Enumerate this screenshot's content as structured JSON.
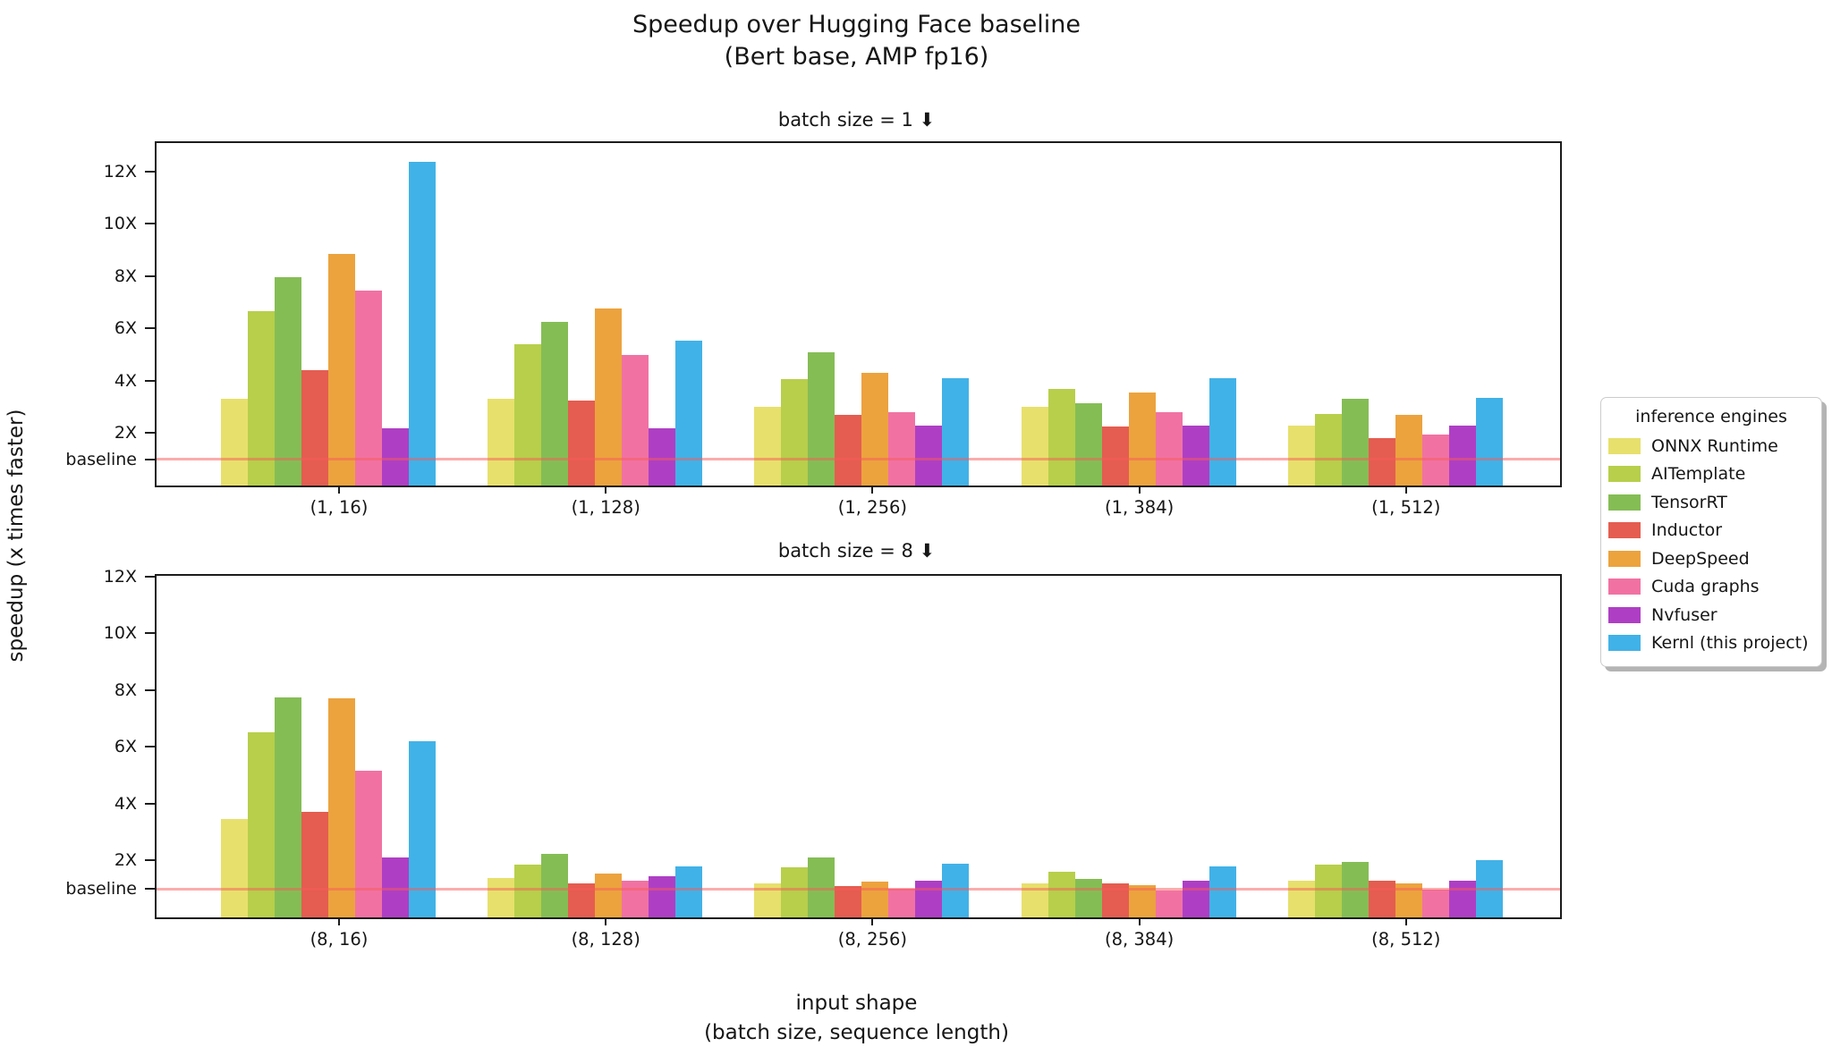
{
  "title": {
    "line1": "Speedup over Hugging Face baseline",
    "line2": "(Bert base, AMP fp16)"
  },
  "ylabel": "speedup (x times faster)",
  "xlabel": {
    "line1": "input shape",
    "line2": "(batch size, sequence length)"
  },
  "legend": {
    "title": "inference engines",
    "entries": [
      {
        "label": "ONNX Runtime",
        "color": "#e7e06c"
      },
      {
        "label": "AITemplate",
        "color": "#b7cf4b"
      },
      {
        "label": "TensorRT",
        "color": "#85bd55"
      },
      {
        "label": "Inductor",
        "color": "#e45d50"
      },
      {
        "label": "DeepSpeed",
        "color": "#eca33e"
      },
      {
        "label": "Cuda graphs",
        "color": "#f172a2"
      },
      {
        "label": "Nvfuser",
        "color": "#ae3fc4"
      },
      {
        "label": "Kernl (this project)",
        "color": "#41b2e7"
      }
    ]
  },
  "chart_data": [
    {
      "type": "bar",
      "title": "batch size = 1 ⬇",
      "categories": [
        "(1, 16)",
        "(1, 128)",
        "(1, 256)",
        "(1, 384)",
        "(1, 512)"
      ],
      "series": [
        {
          "name": "ONNX Runtime",
          "values": [
            3.3,
            3.3,
            3.0,
            3.0,
            2.3
          ]
        },
        {
          "name": "AITemplate",
          "values": [
            6.65,
            5.4,
            4.05,
            3.7,
            2.75
          ]
        },
        {
          "name": "TensorRT",
          "values": [
            7.95,
            6.25,
            5.1,
            3.15,
            3.3
          ]
        },
        {
          "name": "Inductor",
          "values": [
            4.4,
            3.25,
            2.7,
            2.25,
            1.8
          ]
        },
        {
          "name": "DeepSpeed",
          "values": [
            8.85,
            6.75,
            4.3,
            3.55,
            2.7
          ]
        },
        {
          "name": "Cuda graphs",
          "values": [
            7.45,
            5.0,
            2.8,
            2.8,
            1.95
          ]
        },
        {
          "name": "Nvfuser",
          "values": [
            2.2,
            2.2,
            2.3,
            2.3,
            2.3
          ]
        },
        {
          "name": "Kernl (this project)",
          "values": [
            12.35,
            5.55,
            4.1,
            4.1,
            3.35
          ]
        }
      ],
      "ylim": [
        0,
        13.08
      ],
      "yticks": [
        {
          "label": "baseline",
          "value": 1
        },
        {
          "label": "2X",
          "value": 2
        },
        {
          "label": "4X",
          "value": 4
        },
        {
          "label": "6X",
          "value": 6
        },
        {
          "label": "8X",
          "value": 8
        },
        {
          "label": "10X",
          "value": 10
        },
        {
          "label": "12X",
          "value": 12
        }
      ],
      "baseline_value": 1,
      "grid": false,
      "legend_position": "right"
    },
    {
      "type": "bar",
      "title": "batch size = 8 ⬇",
      "categories": [
        "(8, 16)",
        "(8, 128)",
        "(8, 256)",
        "(8, 384)",
        "(8, 512)"
      ],
      "series": [
        {
          "name": "ONNX Runtime",
          "values": [
            3.45,
            1.4,
            1.2,
            1.2,
            1.3
          ]
        },
        {
          "name": "AITemplate",
          "values": [
            6.5,
            1.85,
            1.75,
            1.6,
            1.85
          ]
        },
        {
          "name": "TensorRT",
          "values": [
            7.75,
            2.25,
            2.1,
            1.35,
            1.95
          ]
        },
        {
          "name": "Inductor",
          "values": [
            3.7,
            1.2,
            1.1,
            1.2,
            1.3
          ]
        },
        {
          "name": "DeepSpeed",
          "values": [
            7.7,
            1.55,
            1.25,
            1.15,
            1.2
          ]
        },
        {
          "name": "Cuda graphs",
          "values": [
            5.15,
            1.3,
            1.0,
            0.95,
            0.97
          ]
        },
        {
          "name": "Nvfuser",
          "values": [
            2.1,
            1.45,
            1.3,
            1.3,
            1.3
          ]
        },
        {
          "name": "Kernl (this project)",
          "values": [
            6.2,
            1.8,
            1.9,
            1.8,
            2.0
          ]
        }
      ],
      "ylim": [
        0,
        12.02
      ],
      "yticks": [
        {
          "label": "baseline",
          "value": 1
        },
        {
          "label": "2X",
          "value": 2
        },
        {
          "label": "4X",
          "value": 4
        },
        {
          "label": "6X",
          "value": 6
        },
        {
          "label": "8X",
          "value": 8
        },
        {
          "label": "10X",
          "value": 10
        },
        {
          "label": "12X",
          "value": 12
        }
      ],
      "baseline_value": 1,
      "grid": false,
      "legend_position": "right"
    }
  ]
}
